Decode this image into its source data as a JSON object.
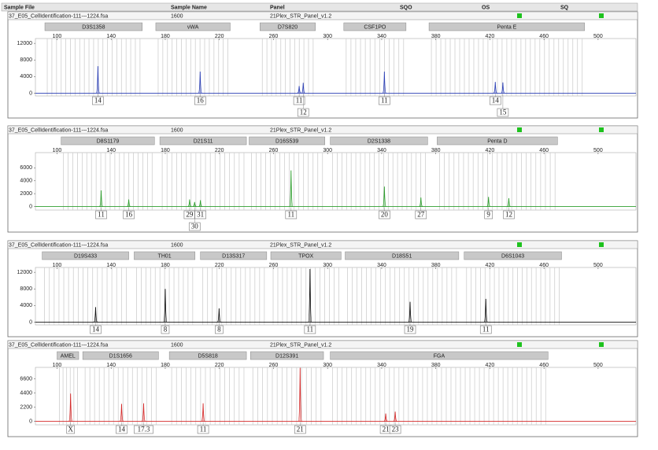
{
  "header": {
    "columns": [
      "Sample File",
      "Sample Name",
      "Panel",
      "SQO",
      "OS",
      "SQ"
    ]
  },
  "chart_data": [
    {
      "type": "electropherogram",
      "sample_file": "37_E05_CellIdentification-111---1224.fsa",
      "sample_name": "1600",
      "panel": "21Plex_STR_Panel_v1.2",
      "color": "#2b3fb5",
      "xlim": [
        84,
        528
      ],
      "xticks": [
        100,
        140,
        180,
        220,
        260,
        300,
        340,
        380,
        420,
        460,
        500
      ],
      "ylim": [
        -300,
        12600
      ],
      "yticks": [
        0,
        4000,
        8000,
        12000
      ],
      "loci": [
        {
          "name": "D3S1358",
          "range": [
            91,
            163
          ],
          "peaks": [
            {
              "x": 130.2,
              "height": 6500,
              "label": "14"
            }
          ]
        },
        {
          "name": "vWA",
          "range": [
            173,
            228
          ],
          "peaks": [
            {
              "x": 205.8,
              "height": 5200,
              "label": "16"
            }
          ]
        },
        {
          "name": "D7S820",
          "range": [
            250,
            291
          ],
          "peaks": [
            {
              "x": 279,
              "height": 1700,
              "label": "11"
            },
            {
              "x": 282,
              "height": 2500,
              "label": "12"
            }
          ]
        },
        {
          "name": "CSF1PO",
          "range": [
            312,
            358
          ],
          "peaks": [
            {
              "x": 342,
              "height": 5200,
              "label": "11"
            }
          ]
        },
        {
          "name": "Penta E",
          "range": [
            375,
            490
          ],
          "peaks": [
            {
              "x": 424,
              "height": 2700,
              "label": "14"
            },
            {
              "x": 429.6,
              "height": 2600,
              "label": "15"
            }
          ]
        }
      ]
    },
    {
      "type": "electropherogram",
      "sample_file": "37_E05_CellIdentification-111---1224.fsa",
      "sample_name": "1600",
      "panel": "21Plex_STR_Panel_v1.2",
      "color": "#2e9e2e",
      "xlim": [
        84,
        528
      ],
      "xticks": [
        100,
        140,
        180,
        220,
        260,
        300,
        340,
        380,
        420,
        460,
        500
      ],
      "ylim": [
        -300,
        8000
      ],
      "yticks": [
        0,
        2000,
        4000,
        6000
      ],
      "loci": [
        {
          "name": "D8S1179",
          "range": [
            103,
            172
          ],
          "peaks": [
            {
              "x": 132.6,
              "height": 2500,
              "label": "11"
            },
            {
              "x": 153,
              "height": 1100,
              "label": "16"
            }
          ]
        },
        {
          "name": "D21S11",
          "range": [
            176,
            240
          ],
          "peaks": [
            {
              "x": 198,
              "height": 1100,
              "label": "29"
            },
            {
              "x": 201.7,
              "height": 700,
              "label": "30"
            },
            {
              "x": 206,
              "height": 1000,
              "label": "31"
            }
          ]
        },
        {
          "name": "D16S539",
          "range": [
            242,
            298
          ],
          "peaks": [
            {
              "x": 273,
              "height": 5600,
              "label": "11"
            }
          ]
        },
        {
          "name": "D2S1338",
          "range": [
            302,
            374
          ],
          "peaks": [
            {
              "x": 342,
              "height": 3100,
              "label": "20"
            },
            {
              "x": 369,
              "height": 1400,
              "label": "27"
            }
          ]
        },
        {
          "name": "Penta D",
          "range": [
            381,
            470
          ],
          "peaks": [
            {
              "x": 419,
              "height": 1500,
              "label": "9"
            },
            {
              "x": 434,
              "height": 1300,
              "label": "12"
            }
          ]
        }
      ]
    },
    {
      "type": "electropherogram",
      "sample_file": "37_E05_CellIdentification-111---1224.fsa",
      "sample_name": "1600",
      "panel": "21Plex_STR_Panel_v1.2",
      "color": "#111111",
      "xlim": [
        84,
        528
      ],
      "xticks": [
        100,
        140,
        180,
        220,
        260,
        300,
        340,
        380,
        420,
        460,
        500
      ],
      "ylim": [
        -300,
        12600
      ],
      "yticks": [
        0,
        4000,
        8000,
        12000
      ],
      "loci": [
        {
          "name": "D19S433",
          "range": [
            89,
            153
          ],
          "peaks": [
            {
              "x": 128.5,
              "height": 3600,
              "label": "14"
            }
          ]
        },
        {
          "name": "TH01",
          "range": [
            157,
            202
          ],
          "peaks": [
            {
              "x": 180,
              "height": 8000,
              "label": "8"
            }
          ]
        },
        {
          "name": "D13S317",
          "range": [
            206,
            255
          ],
          "peaks": [
            {
              "x": 219.8,
              "height": 3300,
              "label": "8"
            }
          ]
        },
        {
          "name": "TPOX",
          "range": [
            258,
            310
          ],
          "peaks": [
            {
              "x": 287,
              "height": 12800,
              "label": "11"
            }
          ]
        },
        {
          "name": "D18S51",
          "range": [
            313,
            397
          ],
          "peaks": [
            {
              "x": 361,
              "height": 4900,
              "label": "19"
            }
          ]
        },
        {
          "name": "D6S1043",
          "range": [
            401,
            473
          ],
          "peaks": [
            {
              "x": 417,
              "height": 5600,
              "label": "11"
            }
          ]
        }
      ]
    },
    {
      "type": "electropherogram",
      "sample_file": "37_E05_CellIdentification-111---1224.fsa",
      "sample_name": "1600",
      "panel": "21Plex_STR_Panel_v1.2",
      "color": "#d42a2a",
      "xlim": [
        84,
        528
      ],
      "xticks": [
        100,
        140,
        180,
        220,
        260,
        300,
        340,
        380,
        420,
        460,
        500
      ],
      "ylim": [
        -300,
        8000
      ],
      "yticks": [
        0,
        2200,
        4400,
        6600
      ],
      "loci": [
        {
          "name": "AMEL",
          "range": [
            100,
            116
          ],
          "peaks": [
            {
              "x": 110,
              "height": 4300,
              "label": "X"
            }
          ]
        },
        {
          "name": "D1S1656",
          "range": [
            119,
            175
          ],
          "peaks": [
            {
              "x": 147.7,
              "height": 2700,
              "label": "14"
            },
            {
              "x": 164,
              "height": 2800,
              "label": "17.3"
            }
          ]
        },
        {
          "name": "D5S818",
          "range": [
            183,
            240
          ],
          "peaks": [
            {
              "x": 208,
              "height": 2800,
              "label": "11"
            }
          ]
        },
        {
          "name": "D12S391",
          "range": [
            243,
            297
          ],
          "peaks": [
            {
              "x": 279.7,
              "height": 8300,
              "label": "21"
            }
          ]
        },
        {
          "name": "FGA",
          "range": [
            302,
            463
          ],
          "peaks": [
            {
              "x": 343,
              "height": 1200,
              "label": "21"
            },
            {
              "x": 350,
              "height": 1500,
              "label": "23"
            }
          ]
        }
      ]
    }
  ]
}
